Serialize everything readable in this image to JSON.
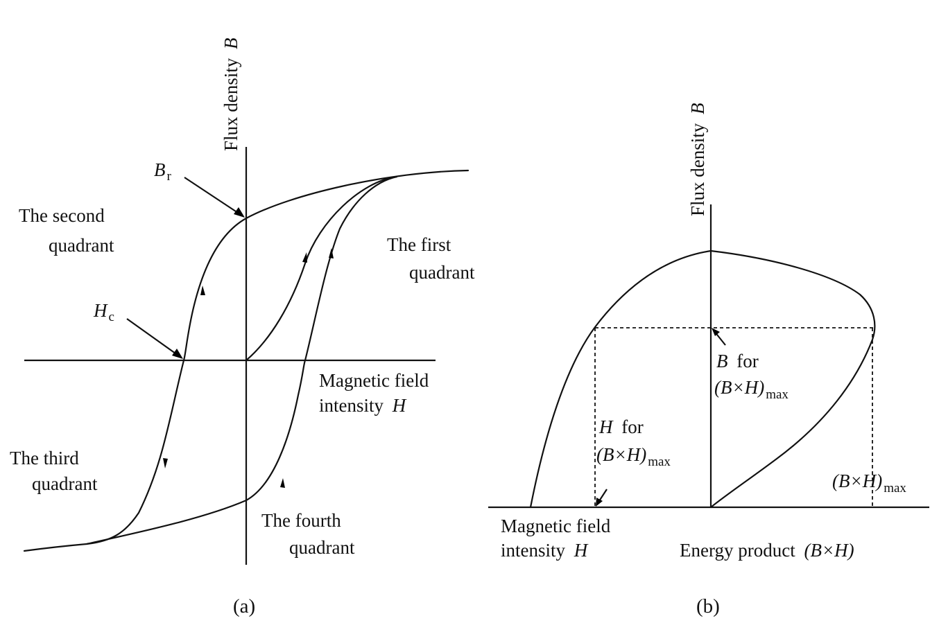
{
  "panel_a": {
    "y_axis_label": "Flux density",
    "y_axis_symbol": "B",
    "x_axis_label_line1": "Magnetic field",
    "x_axis_label_line2": "intensity",
    "x_axis_symbol": "H",
    "remanence_symbol": "B",
    "remanence_sub": "r",
    "coercivity_symbol": "H",
    "coercivity_sub": "c",
    "q1_line1": "The first",
    "q1_line2": "quadrant",
    "q2_line1": "The second",
    "q2_line2": "quadrant",
    "q3_line1": "The third",
    "q3_line2": "quadrant",
    "q4_line1": "The fourth",
    "q4_line2": "quadrant",
    "caption": "(a)"
  },
  "panel_b": {
    "y_axis_label": "Flux density",
    "y_axis_symbol": "B",
    "b_for_symbol": "B",
    "b_for_text": "for",
    "h_for_symbol": "H",
    "h_for_text": "for",
    "product_expr": "(B×H)",
    "max_sub": "max",
    "left_axis_line1": "Magnetic field",
    "left_axis_line2": "intensity",
    "left_axis_symbol": "H",
    "right_axis_label": "Energy product",
    "right_axis_expr": "(B×H)",
    "caption": "(b)"
  }
}
